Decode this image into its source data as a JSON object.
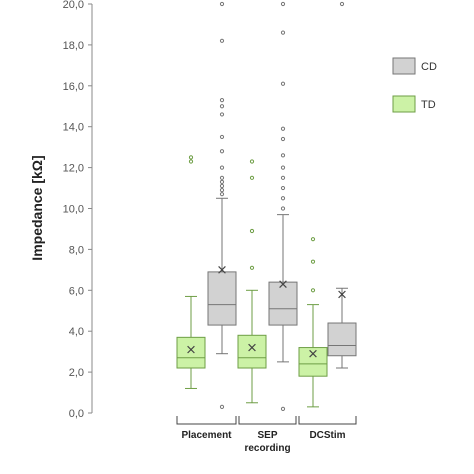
{
  "chart_data": {
    "type": "box",
    "ylabel": "Impedance [kΩ]",
    "ylim": [
      0,
      20
    ],
    "yticks": [
      "0,0",
      "2,0",
      "4,0",
      "6,0",
      "8,0",
      "10,0",
      "12,0",
      "14,0",
      "16,0",
      "18,0",
      "20,0"
    ],
    "grid": false,
    "legend_position": "right",
    "categories": [
      {
        "lines": [
          "Placement"
        ]
      },
      {
        "lines": [
          "SEP",
          "recording"
        ]
      },
      {
        "lines": [
          "DCStim"
        ]
      }
    ],
    "series": [
      {
        "name": "TD",
        "fill": "#ccf2a6",
        "stroke": "#6e9e45",
        "boxes": [
          {
            "whisker_low": 1.2,
            "q1": 2.2,
            "median": 2.7,
            "q3": 3.7,
            "whisker_high": 5.7,
            "mean": 3.1,
            "outliers": [
              12.3,
              12.5
            ]
          },
          {
            "whisker_low": 0.5,
            "q1": 2.2,
            "median": 2.7,
            "q3": 3.8,
            "whisker_high": 6.0,
            "mean": 3.2,
            "outliers": [
              7.1,
              8.9,
              11.5,
              12.3
            ]
          },
          {
            "whisker_low": 0.3,
            "q1": 1.8,
            "median": 2.4,
            "q3": 3.2,
            "whisker_high": 5.3,
            "mean": 2.9,
            "outliers": [
              6.0,
              7.4,
              8.5
            ]
          }
        ]
      },
      {
        "name": "CD",
        "fill": "#d2d2d2",
        "stroke": "#767676",
        "boxes": [
          {
            "whisker_low": 2.9,
            "q1": 4.3,
            "median": 5.3,
            "q3": 6.9,
            "whisker_high": 10.5,
            "mean": 7.0,
            "outliers": [
              0.3,
              10.7,
              10.9,
              11.1,
              11.3,
              11.5,
              12.0,
              12.8,
              13.5,
              14.6,
              15.0,
              15.3,
              18.2,
              20.0
            ]
          },
          {
            "whisker_low": 2.5,
            "q1": 4.3,
            "median": 5.1,
            "q3": 6.4,
            "whisker_high": 9.7,
            "mean": 6.3,
            "outliers": [
              0.2,
              10.0,
              10.5,
              11.0,
              11.5,
              12.0,
              12.6,
              13.4,
              13.9,
              16.1,
              18.6,
              20.0
            ]
          },
          {
            "whisker_low": 2.2,
            "q1": 2.8,
            "median": 3.3,
            "q3": 4.4,
            "whisker_high": 6.1,
            "mean": 5.8,
            "outliers": [
              20.0
            ]
          }
        ]
      }
    ]
  }
}
